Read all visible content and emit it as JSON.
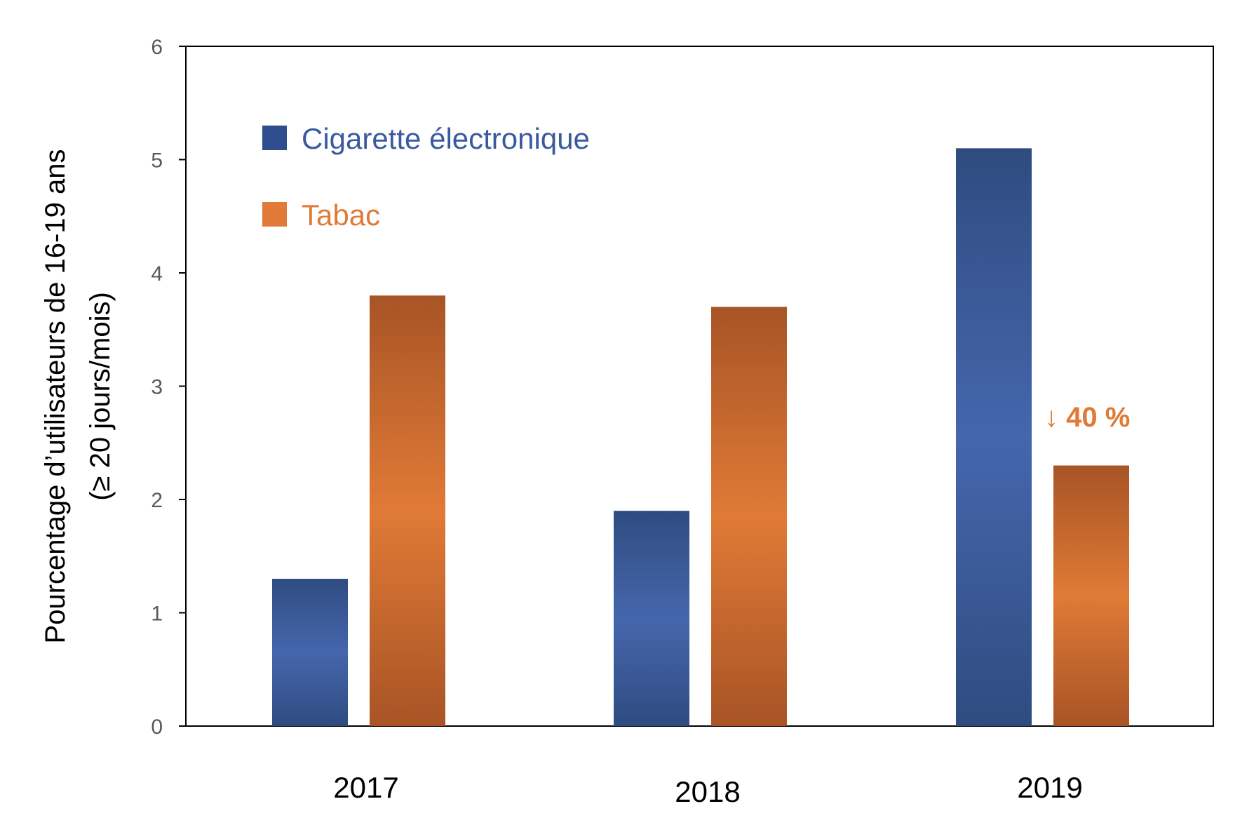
{
  "chart_data": {
    "type": "bar",
    "categories": [
      "2017",
      "2018",
      "2019"
    ],
    "series": [
      {
        "name": "Cigarette électronique",
        "values": [
          1.3,
          1.9,
          5.1
        ],
        "color": "#4164ac"
      },
      {
        "name": "Tabac",
        "values": [
          3.8,
          3.7,
          2.3
        ],
        "color": "#e07a36"
      }
    ],
    "ylabel_line1": "Pourcentage d’utilisateurs de 16-19 ans",
    "ylabel_line2": "(≥ 20 jours/mois)",
    "ylim": [
      0,
      6
    ],
    "yticks": [
      "0",
      "1",
      "2",
      "3",
      "4",
      "5",
      "6"
    ],
    "grid": false,
    "legend_position": "top-left",
    "annotation": {
      "text": "↓ 40 %",
      "series": "Tabac",
      "category": "2019"
    }
  }
}
